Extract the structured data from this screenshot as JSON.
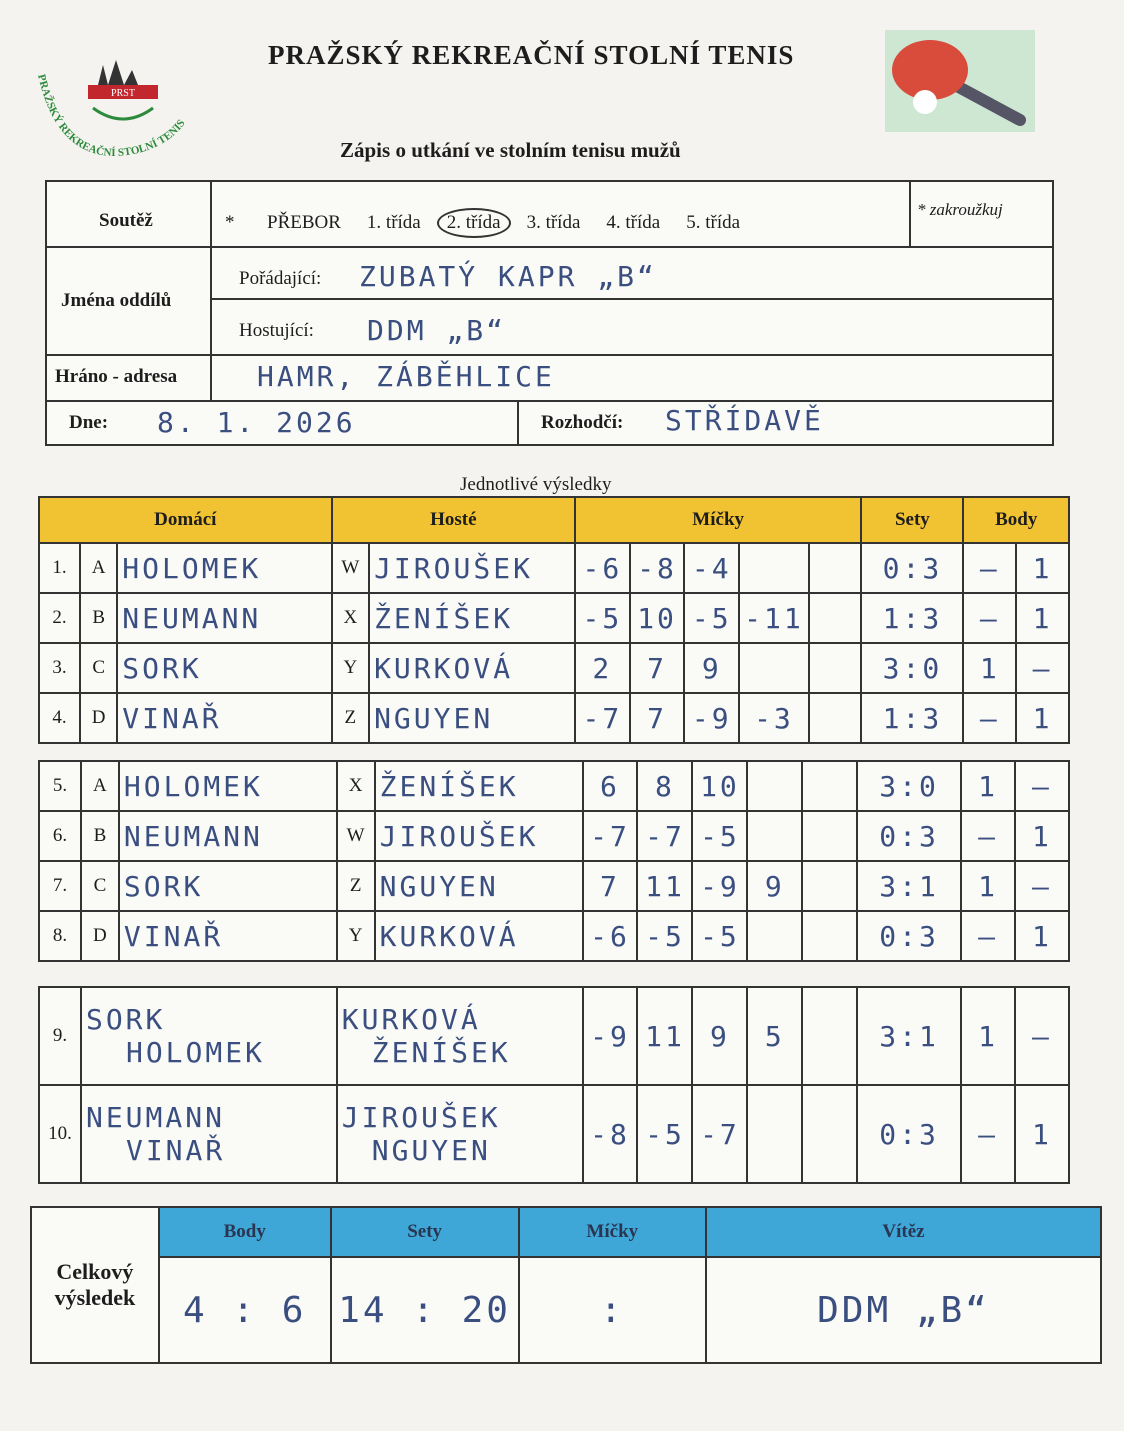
{
  "logo": {
    "abbr": "PRST",
    "name": "PRAŽSKÝ REKREAČNÍ STOLNÍ TENIS"
  },
  "header": {
    "title": "PRAŽSKÝ REKREAČNÍ STOLNÍ TENIS",
    "subtitle": "Zápis o utkání ve stolním tenisu mužů"
  },
  "info": {
    "competition_label": "Soutěž",
    "star": "*",
    "options": [
      "PŘEBOR",
      "1. třída",
      "2. třída",
      "3. třída",
      "4. třída",
      "5. třída"
    ],
    "circled": 2,
    "note": "* zakroužkuj",
    "teams_label": "Jména oddílů",
    "home_label": "Pořádající:",
    "home": "ZUBATÝ KAPR „B“",
    "guest_label": "Hostující:",
    "guest": "DDM „B“",
    "address_label": "Hráno - adresa",
    "address": "HAMR, ZÁBĚHLICE",
    "date_label": "Dne:",
    "date": "8. 1. 2026",
    "referee_label": "Rozhodčí:",
    "referee": "STŘÍDAVĚ"
  },
  "singles": {
    "heading": "Jednotlivé výsledky",
    "columns": [
      "Domácí",
      "Hosté",
      "Míčky",
      "Sety",
      "Body"
    ],
    "rows": [
      {
        "no": "1.",
        "home_letter": "A",
        "home": "HOLOMEK",
        "guest_letter": "W",
        "guest": "JIROUŠEK",
        "balls": [
          "-6",
          "-8",
          "-4"
        ],
        "sets": "0:3",
        "points": [
          "—",
          "1"
        ]
      },
      {
        "no": "2.",
        "home_letter": "B",
        "home": "NEUMANN",
        "guest_letter": "X",
        "guest": "ŽENÍŠEK",
        "balls": [
          "-5",
          "10",
          "-5",
          "-11"
        ],
        "sets": "1:3",
        "points": [
          "—",
          "1"
        ]
      },
      {
        "no": "3.",
        "home_letter": "C",
        "home": "SORK",
        "guest_letter": "Y",
        "guest": "KURKOVÁ",
        "balls": [
          "2",
          "7",
          "9"
        ],
        "sets": "3:0",
        "points": [
          "1",
          "—"
        ]
      },
      {
        "no": "4.",
        "home_letter": "D",
        "home": "VINAŘ",
        "guest_letter": "Z",
        "guest": "NGUYEN",
        "balls": [
          "-7",
          "7",
          "-9",
          "-3"
        ],
        "sets": "1:3",
        "points": [
          "—",
          "1"
        ]
      },
      {
        "no": "5.",
        "home_letter": "A",
        "home": "HOLOMEK",
        "guest_letter": "X",
        "guest": "ŽENÍŠEK",
        "balls": [
          "6",
          "8",
          "10"
        ],
        "sets": "3:0",
        "points": [
          "1",
          "—"
        ]
      },
      {
        "no": "6.",
        "home_letter": "B",
        "home": "NEUMANN",
        "guest_letter": "W",
        "guest": "JIROUŠEK",
        "balls": [
          "-7",
          "-7",
          "-5"
        ],
        "sets": "0:3",
        "points": [
          "—",
          "1"
        ]
      },
      {
        "no": "7.",
        "home_letter": "C",
        "home": "SORK",
        "guest_letter": "Z",
        "guest": "NGUYEN",
        "balls": [
          "7",
          "11",
          "-9",
          "9"
        ],
        "sets": "3:1",
        "points": [
          "1",
          "—"
        ]
      },
      {
        "no": "8.",
        "home_letter": "D",
        "home": "VINAŘ",
        "guest_letter": "Y",
        "guest": "KURKOVÁ",
        "balls": [
          "-6",
          "-5",
          "-5"
        ],
        "sets": "0:3",
        "points": [
          "—",
          "1"
        ]
      }
    ]
  },
  "doubles": {
    "rows": [
      {
        "no": "9.",
        "home": [
          "SORK",
          "HOLOMEK"
        ],
        "guest": [
          "KURKOVÁ",
          "ŽENÍŠEK"
        ],
        "balls": [
          "-9",
          "11",
          "9",
          "5"
        ],
        "sets": "3:1",
        "points": [
          "1",
          "—"
        ]
      },
      {
        "no": "10.",
        "home": [
          "NEUMANN",
          "VINAŘ"
        ],
        "guest": [
          "JIROUŠEK",
          "NGUYEN"
        ],
        "balls": [
          "-8",
          "-5",
          "-7"
        ],
        "sets": "0:3",
        "points": [
          "—",
          "1"
        ]
      }
    ]
  },
  "total": {
    "label": "Celkový výsledek",
    "columns": [
      "Body",
      "Sety",
      "Míčky",
      "Vítěz"
    ],
    "points": "4 : 6",
    "sets": "14 : 20",
    "balls": ":",
    "winner": "DDM „B“"
  }
}
